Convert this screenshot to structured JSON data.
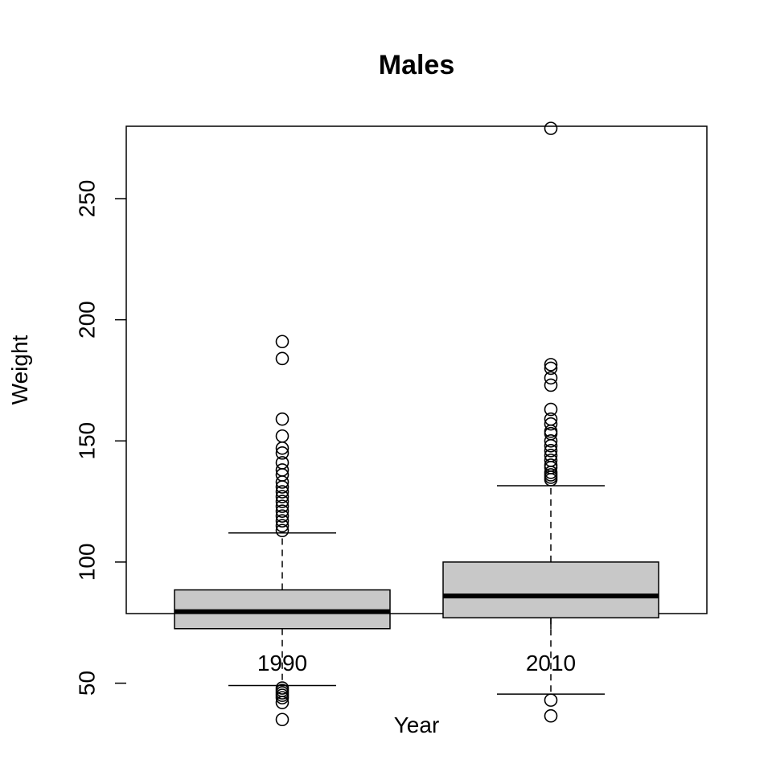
{
  "chart_data": {
    "type": "box",
    "title": "Males",
    "xlabel": "Year",
    "ylabel": "Weight",
    "categories": [
      "1990",
      "2010"
    ],
    "y_ticks": [
      50,
      100,
      150,
      200,
      250
    ],
    "ylim": [
      25,
      290
    ],
    "grid": false,
    "legend": "none",
    "box_fill": "#c8c8c8",
    "series": [
      {
        "category": "1990",
        "whisker_low": 49,
        "q1": 72.5,
        "median": 79.5,
        "q3": 88.5,
        "whisker_high": 112,
        "outliers": [
          191,
          184,
          159,
          152,
          147,
          145,
          141,
          138,
          136,
          133,
          131,
          129,
          127,
          125,
          123,
          121,
          119,
          117,
          115,
          113,
          48,
          47,
          46,
          45,
          44,
          42,
          35
        ]
      },
      {
        "category": "2010",
        "whisker_low": 45.5,
        "q1": 77,
        "median": 86,
        "q3": 100,
        "whisker_high": 131.5,
        "outliers": [
          279,
          181.5,
          180,
          176,
          173,
          163,
          159,
          157,
          154,
          153,
          150,
          148,
          146,
          144,
          142,
          140,
          139,
          137,
          136,
          135,
          134,
          43,
          36.5
        ]
      }
    ]
  }
}
